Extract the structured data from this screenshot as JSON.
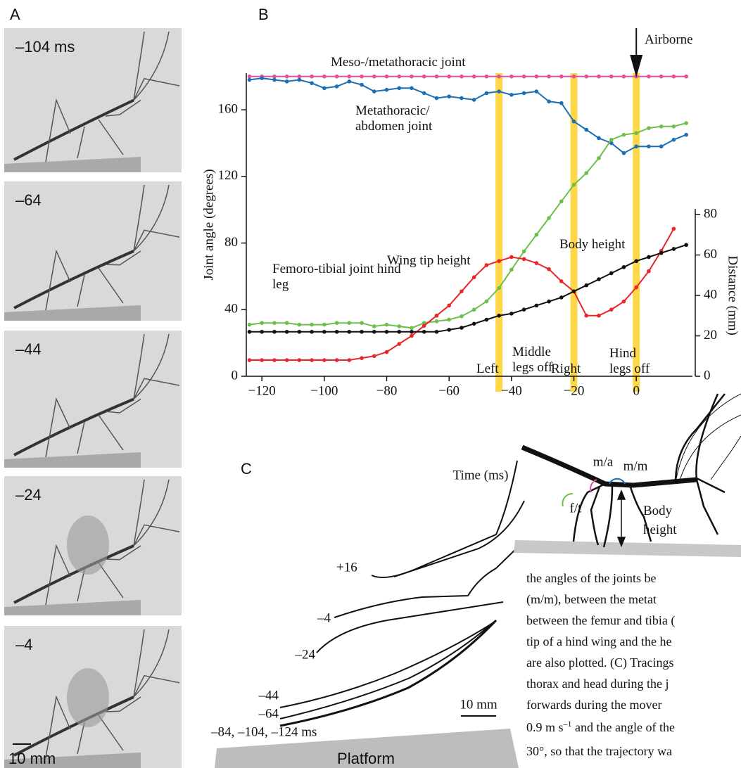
{
  "panels": {
    "a": "A",
    "b": "B",
    "c": "C"
  },
  "panel_a": {
    "frames": [
      "–104 ms",
      "–64",
      "–44",
      "–24",
      "–4"
    ],
    "scale_label": "10 mm"
  },
  "chart_data": {
    "type": "line",
    "xlabel": "Time (ms)",
    "ylabel": "Joint angle (degrees)",
    "y2label": "Distance (mm)",
    "x": [
      -124,
      -120,
      -116,
      -112,
      -108,
      -104,
      -100,
      -96,
      -92,
      -88,
      -84,
      -80,
      -76,
      -72,
      -68,
      -64,
      -60,
      -56,
      -52,
      -48,
      -44,
      -40,
      -36,
      -32,
      -28,
      -24,
      -20,
      -16,
      -12,
      -8,
      -4,
      0,
      4,
      8,
      12,
      16
    ],
    "xlim": [
      -125,
      18
    ],
    "xticks": [
      {
        "value": -120,
        "label": "−120"
      },
      {
        "value": -100,
        "label": "−100"
      },
      {
        "value": -80,
        "label": "−80"
      },
      {
        "value": -60,
        "label": "−60"
      },
      {
        "value": -40,
        "label": "−40"
      },
      {
        "value": -20,
        "label": "−20"
      },
      0
    ],
    "ylim": [
      0,
      182
    ],
    "yticks": [
      0,
      40,
      80,
      120,
      160
    ],
    "y2lim": [
      0,
      150
    ],
    "y2ticks": [
      0,
      20,
      40,
      60,
      80
    ],
    "series": [
      {
        "name": "Meso-/metathoracic joint",
        "color": "#e0509f",
        "values": [
          180,
          180,
          180,
          180,
          180,
          180,
          180,
          180,
          180,
          180,
          180,
          180,
          180,
          180,
          180,
          180,
          180,
          180,
          180,
          180,
          180,
          180,
          180,
          180,
          180,
          180,
          180,
          180,
          180,
          180,
          180,
          180,
          180,
          180,
          180,
          180
        ]
      },
      {
        "name": "Metathoracic/ abdomen joint",
        "color": "#1a6fb5",
        "values": [
          178,
          179,
          178,
          177,
          178,
          176,
          173,
          174,
          177,
          175,
          171,
          172,
          173,
          173,
          170,
          167,
          168,
          167,
          166,
          170,
          171,
          169,
          170,
          171,
          165,
          164,
          153,
          148,
          143,
          140,
          134,
          138,
          138,
          138,
          142,
          145
        ]
      },
      {
        "name": "Femoro-tibial joint hind leg",
        "color": "#6cc04a",
        "values": [
          31,
          32,
          32,
          32,
          31,
          31,
          31,
          32,
          32,
          32,
          30,
          31,
          30,
          29,
          32,
          33,
          34,
          36,
          40,
          45,
          53,
          64,
          75,
          85,
          95,
          105,
          115,
          122,
          131,
          142,
          145,
          146,
          149,
          150,
          150,
          152
        ]
      },
      {
        "name": "Wing tip height",
        "color": "#e8262a",
        "axis": "y2",
        "values": [
          8,
          8,
          8,
          8,
          8,
          8,
          8,
          8,
          8,
          9,
          10,
          12,
          16,
          20,
          25,
          30,
          35,
          42,
          49,
          55,
          57,
          59,
          58,
          56,
          53,
          47,
          42,
          30,
          30,
          33,
          37,
          44,
          52,
          62,
          73,
          null
        ]
      },
      {
        "name": "Body height",
        "color": "#111111",
        "axis": "y2",
        "values": [
          22,
          22,
          22,
          22,
          22,
          22,
          22,
          22,
          22,
          22,
          22,
          22,
          22,
          22,
          22,
          22,
          23,
          24,
          26,
          28,
          30,
          31,
          33,
          35,
          37,
          39,
          42,
          45,
          48,
          51,
          54,
          57,
          59,
          61,
          63,
          65
        ]
      }
    ],
    "event_times": [
      -44,
      -20,
      0
    ],
    "event_color": "#ffd84a",
    "annotations": [
      "Left",
      "Middle legs off",
      "Right",
      "Hind legs off",
      "Airborne"
    ]
  },
  "panel_c": {
    "tracing_labels": [
      "+16",
      "–4",
      "–24",
      "–44",
      "–64",
      "–84, –104, –124 ms"
    ],
    "scale_label": "10 mm",
    "platform": "Platform",
    "inset": {
      "ma": "m/a",
      "mm": "m/m",
      "ft": "f/t",
      "height": "Body height"
    },
    "text_lines": [
      "the angles of the joints be",
      "(m/m), between the metat",
      "between the femur and tibia (",
      "tip of a hind wing and the he",
      "are also plotted. (C) Tracings",
      "thorax and head during the j",
      "forwards during the mover"
    ],
    "speed_line": {
      "before": "0.9 m s",
      "sup": "–1",
      "after": " and the angle of the"
    },
    "last_line": "30°, so that the trajectory wa"
  }
}
